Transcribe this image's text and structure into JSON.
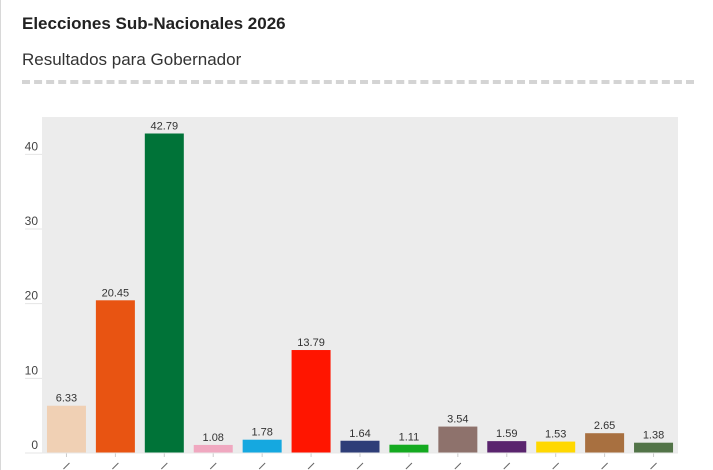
{
  "header": {
    "title": "Elecciones Sub-Nacionales 2026",
    "subtitle": "Resultados para Gobernador"
  },
  "chart_data": {
    "type": "bar",
    "title": "Elecciones Sub-Nacionales 2026",
    "subtitle": "Resultados para Gobernador",
    "values": [
      6.33,
      20.45,
      42.79,
      1.08,
      1.78,
      13.79,
      1.64,
      1.11,
      3.54,
      1.59,
      1.53,
      2.65,
      1.38
    ],
    "colors": [
      "#F0D0B4",
      "#E85412",
      "#007338",
      "#F0A8C0",
      "#15A8E0",
      "#FF1500",
      "#2E3E78",
      "#14AA20",
      "#8E726C",
      "#5A246E",
      "#FFD800",
      "#A87040",
      "#527448"
    ],
    "ylim": [
      0,
      45
    ],
    "yticks": [
      0,
      10,
      20,
      30,
      40
    ],
    "grid": false,
    "data_labels": true
  }
}
